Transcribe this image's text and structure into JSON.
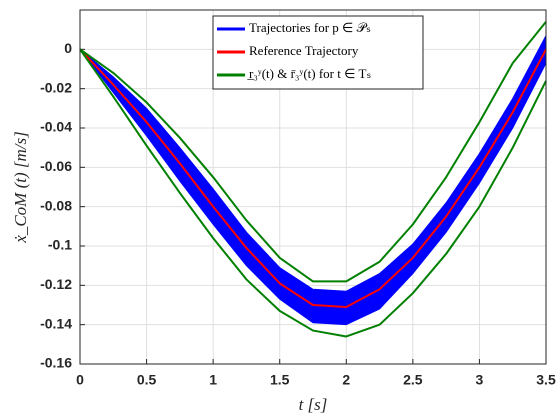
{
  "chart_data": {
    "type": "line",
    "xlabel": "t [s]",
    "ylabel": "ẋ_CoM (t) [m/s]",
    "x": [
      0,
      0.25,
      0.5,
      0.75,
      1,
      1.25,
      1.5,
      1.75,
      2,
      2.25,
      2.5,
      2.75,
      3,
      3.25,
      3.5
    ],
    "series": [
      {
        "name": "Trajectories for p ∈ 𝒫ₛ",
        "color": "#0000ff",
        "kind": "band",
        "upper": [
          0,
          -0.014,
          -0.03,
          -0.05,
          -0.071,
          -0.093,
          -0.111,
          -0.122,
          -0.123,
          -0.114,
          -0.099,
          -0.078,
          -0.053,
          -0.025,
          0.007
        ],
        "lower": [
          0,
          -0.022,
          -0.044,
          -0.067,
          -0.089,
          -0.11,
          -0.127,
          -0.139,
          -0.14,
          -0.132,
          -0.114,
          -0.093,
          -0.068,
          -0.04,
          -0.007
        ]
      },
      {
        "name": "Reference Trajectory",
        "color": "#ff0000",
        "kind": "line",
        "values": [
          0,
          -0.018,
          -0.037,
          -0.058,
          -0.08,
          -0.101,
          -0.119,
          -0.13,
          -0.131,
          -0.122,
          -0.106,
          -0.085,
          -0.06,
          -0.032,
          0
        ]
      },
      {
        "name": "r̲₃ʸ(t) & r̄₃ʸ(t) for t ∈ Tₛ",
        "color": "#008000",
        "kind": "bounds",
        "upper": [
          0,
          -0.012,
          -0.027,
          -0.045,
          -0.065,
          -0.087,
          -0.106,
          -0.118,
          -0.118,
          -0.108,
          -0.089,
          -0.065,
          -0.037,
          -0.007,
          0.014
        ],
        "lower": [
          0,
          -0.024,
          -0.049,
          -0.073,
          -0.096,
          -0.117,
          -0.133,
          -0.143,
          -0.146,
          -0.14,
          -0.124,
          -0.104,
          -0.08,
          -0.05,
          -0.016
        ]
      }
    ],
    "xlim": [
      0,
      3.5
    ],
    "ylim": [
      -0.16,
      0.02
    ],
    "xticks": [
      0,
      0.5,
      1,
      1.5,
      2,
      2.5,
      3,
      3.5
    ],
    "yticks": [
      0,
      -0.02,
      -0.04,
      -0.06,
      -0.08,
      -0.1,
      -0.12,
      -0.14,
      -0.16
    ],
    "grid": true,
    "legend": "top"
  }
}
